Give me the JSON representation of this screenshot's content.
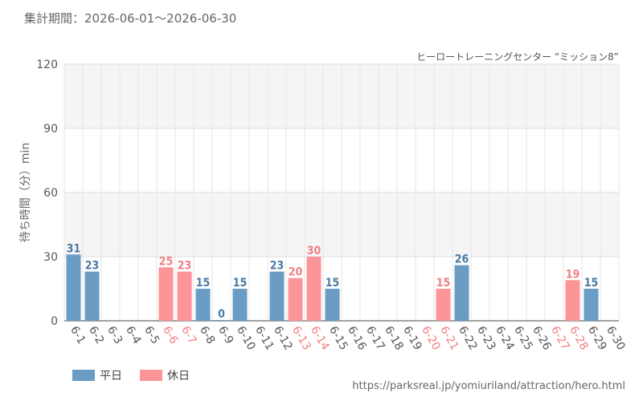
{
  "header": {
    "period_label": "集計期間：2026-06-01～2026-06-30",
    "subtitle": "ヒーロートレーニングセンター “ミッション8”"
  },
  "legend": {
    "weekday_label": "平日",
    "holiday_label": "休日"
  },
  "footer": {
    "source_url": "https://parksreal.jp/yomiuriland/attraction/hero.html"
  },
  "colors": {
    "weekday": "#6a9cc4",
    "holiday": "#fc9597",
    "weekday_text": "#4a7aa6",
    "holiday_text": "#f07f82",
    "axis_text": "#555555"
  },
  "chart_data": {
    "type": "bar",
    "title": "",
    "xlabel": "",
    "ylabel": "待ち時間（分）min",
    "ylim": [
      0,
      120
    ],
    "yticks": [
      0,
      30,
      60,
      90,
      120
    ],
    "grid": true,
    "legend_position": "bottom-left",
    "categories": [
      "6-1",
      "6-2",
      "6-3",
      "6-4",
      "6-5",
      "6-6",
      "6-7",
      "6-8",
      "6-9",
      "6-10",
      "6-11",
      "6-12",
      "6-13",
      "6-14",
      "6-15",
      "6-16",
      "6-17",
      "6-18",
      "6-19",
      "6-20",
      "6-21",
      "6-22",
      "6-23",
      "6-24",
      "6-25",
      "6-26",
      "6-27",
      "6-28",
      "6-29",
      "6-30"
    ],
    "day_type": [
      "weekday",
      "weekday",
      "weekday",
      "weekday",
      "weekday",
      "holiday",
      "holiday",
      "weekday",
      "weekday",
      "weekday",
      "weekday",
      "weekday",
      "holiday",
      "holiday",
      "weekday",
      "weekday",
      "weekday",
      "weekday",
      "weekday",
      "holiday",
      "holiday",
      "weekday",
      "weekday",
      "weekday",
      "weekday",
      "weekday",
      "holiday",
      "holiday",
      "weekday",
      "weekday"
    ],
    "values": [
      31,
      23,
      null,
      null,
      null,
      25,
      23,
      15,
      0,
      15,
      null,
      23,
      20,
      30,
      15,
      null,
      null,
      null,
      null,
      null,
      15,
      26,
      null,
      null,
      null,
      null,
      null,
      19,
      15,
      null
    ]
  }
}
